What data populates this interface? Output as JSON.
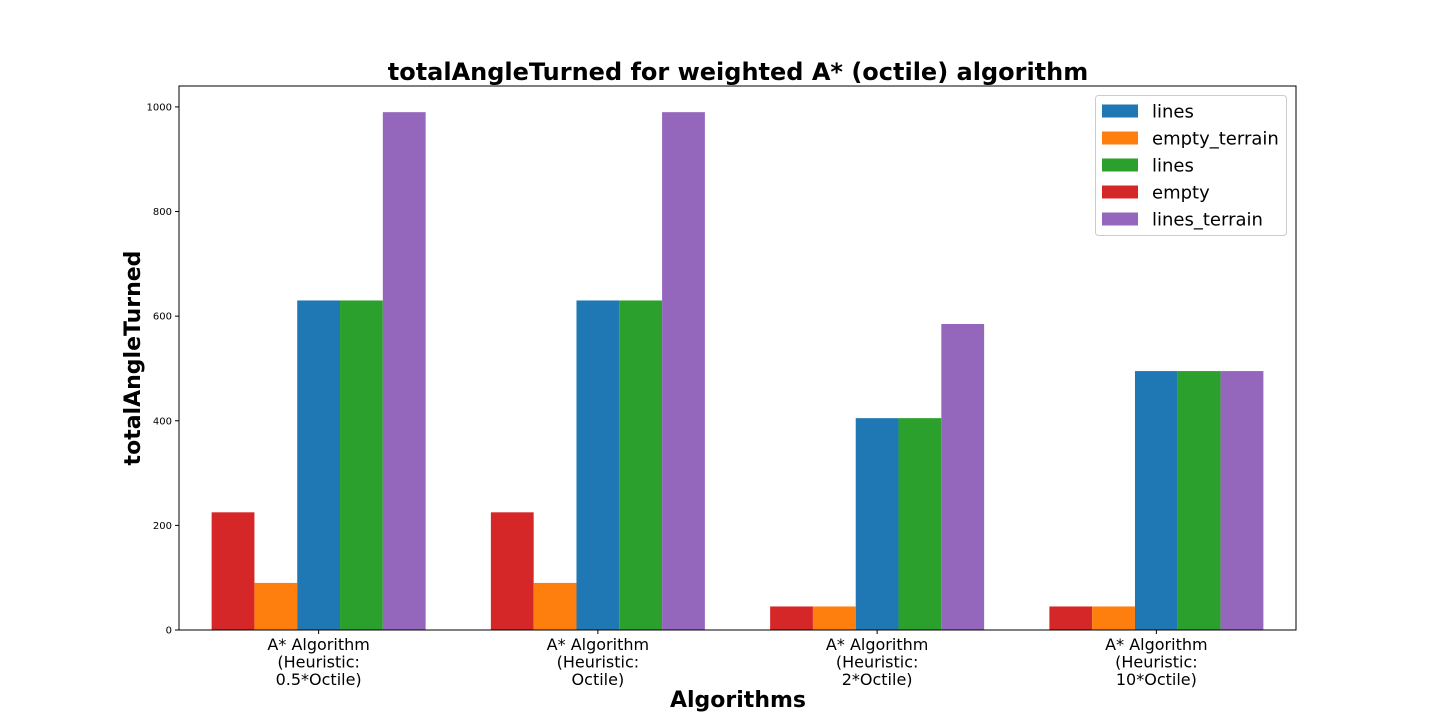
{
  "chart_data": {
    "type": "bar",
    "title": "totalAngleTurned for weighted A* (octile) algorithm",
    "xlabel": "Algorithms",
    "ylabel": "totalAngleTurned",
    "ylim": [
      0,
      1040
    ],
    "yticks": [
      0,
      200,
      400,
      600,
      800,
      1000
    ],
    "grid": false,
    "legend_position": "top-right",
    "categories": [
      [
        "A* Algorithm",
        "(Heuristic:",
        "0.5*Octile)"
      ],
      [
        "A* Algorithm",
        "(Heuristic:",
        "Octile)"
      ],
      [
        "A* Algorithm",
        "(Heuristic:",
        "2*Octile)"
      ],
      [
        "A* Algorithm",
        "(Heuristic:",
        "10*Octile)"
      ]
    ],
    "bar_order": [
      3,
      1,
      0,
      2,
      4
    ],
    "series": [
      {
        "name": "lines",
        "color": "#1f77b4",
        "values": [
          630,
          630,
          405,
          495
        ]
      },
      {
        "name": "empty_terrain",
        "color": "#ff7f0e",
        "values": [
          90,
          90,
          45,
          45
        ]
      },
      {
        "name": "lines",
        "color": "#2ca02c",
        "values": [
          630,
          630,
          405,
          495
        ]
      },
      {
        "name": "empty",
        "color": "#d62728",
        "values": [
          225,
          225,
          45,
          45
        ]
      },
      {
        "name": "lines_terrain",
        "color": "#9467bd",
        "values": [
          990,
          990,
          585,
          495
        ]
      }
    ]
  }
}
